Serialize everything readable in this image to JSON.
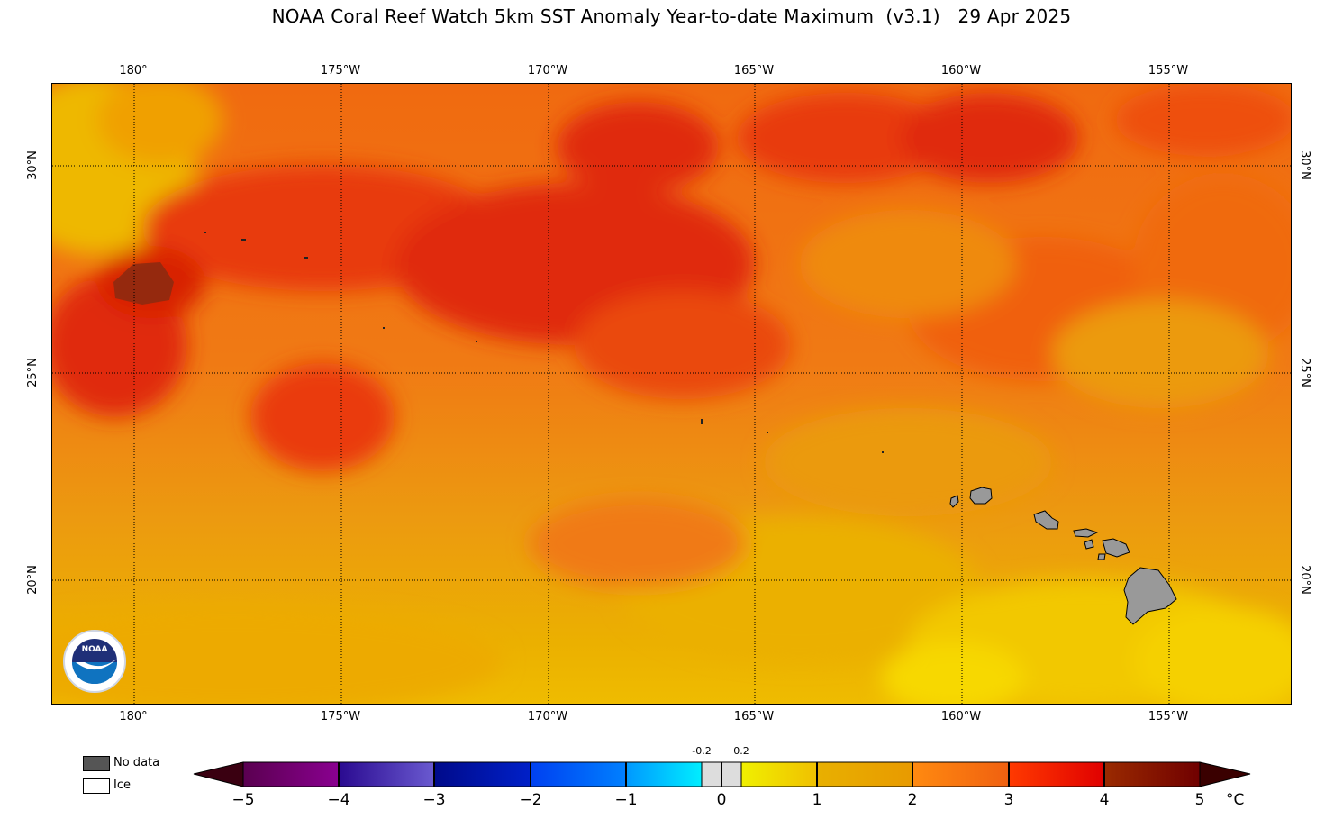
{
  "title": "NOAA Coral Reef Watch 5km SST Anomaly Year-to-date Maximum  (v3.1)   29 Apr 2025",
  "map": {
    "lon_labels": [
      "180°",
      "175°W",
      "170°W",
      "165°W",
      "160°W",
      "155°W"
    ],
    "lat_labels": [
      "30°N",
      "25°N",
      "20°N"
    ],
    "gridlines": "dotted",
    "land_color": "#999999",
    "logo_text": "NOAA"
  },
  "legend": {
    "no_data_label": "No data",
    "no_data_color": "#555555",
    "ice_label": "Ice",
    "ice_color": "#ffffff"
  },
  "colorbar": {
    "ticks": [
      "−5",
      "−4",
      "−3",
      "−2",
      "−1",
      "0",
      "1",
      "2",
      "3",
      "4",
      "5"
    ],
    "small_ticks": [
      "-0.2",
      "0.2"
    ],
    "unit": "°C",
    "colors": [
      "#3a0011",
      "#6a006a",
      "#2a0a9a",
      "#000a9a",
      "#0040ff",
      "#00a8ff",
      "#dddddd",
      "#f0f000",
      "#e8a800",
      "#ff7a10",
      "#f02000",
      "#8a1000",
      "#3a0000"
    ]
  }
}
